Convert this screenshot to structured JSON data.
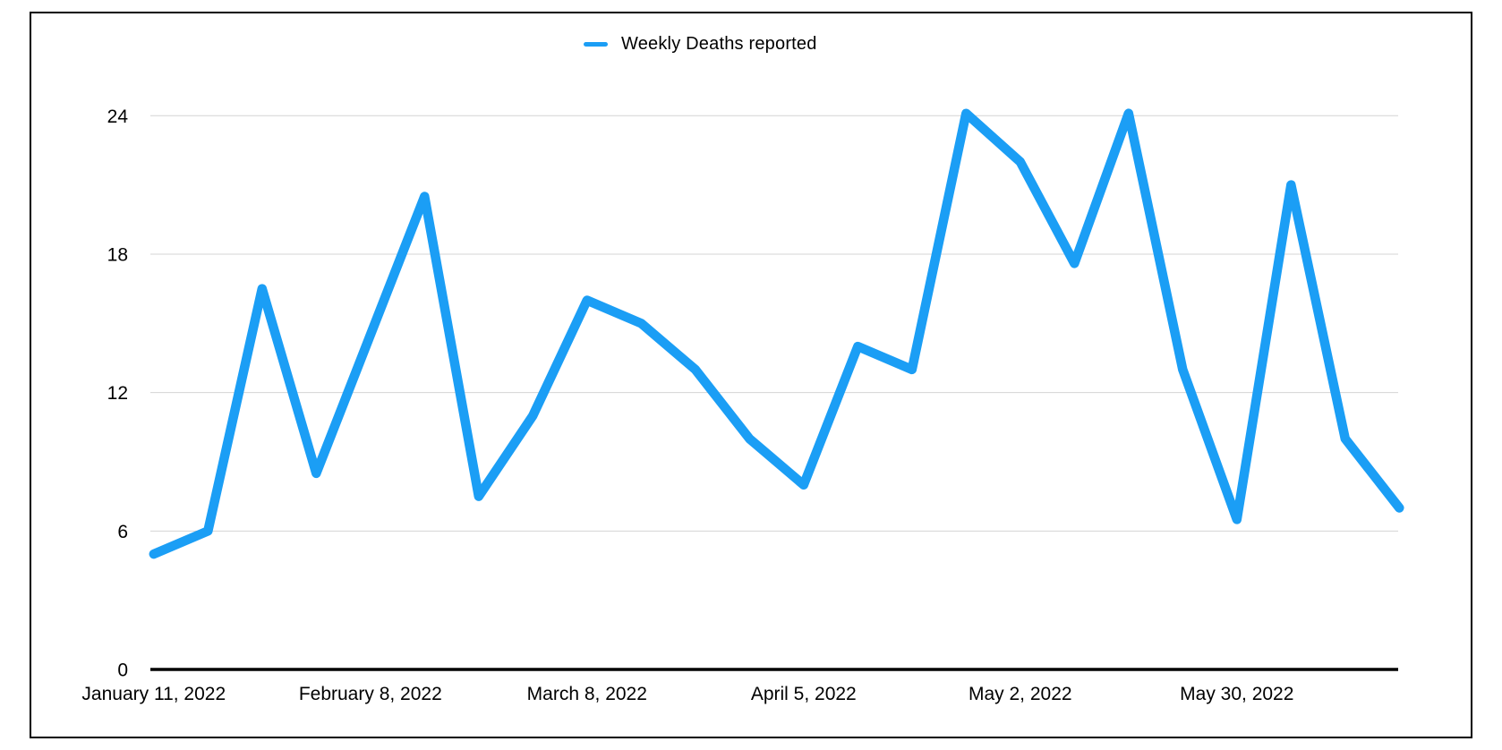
{
  "legend": {
    "label": "Weekly Deaths reported"
  },
  "chart_data": {
    "type": "line",
    "title": "",
    "xlabel": "",
    "ylabel": "",
    "series": [
      {
        "name": "Weekly Deaths reported",
        "values": [
          5,
          6,
          16.5,
          8.5,
          14.5,
          20.5,
          7.5,
          11,
          16,
          15,
          13,
          10,
          8,
          14,
          13,
          24.1,
          22,
          17.6,
          24.1,
          13,
          6.5,
          21,
          10,
          7
        ]
      }
    ],
    "x_tick_labels": [
      {
        "index": 0,
        "label": "January 11, 2022"
      },
      {
        "index": 4,
        "label": "February 8, 2022"
      },
      {
        "index": 8,
        "label": "March 8, 2022"
      },
      {
        "index": 12,
        "label": "April 5, 2022"
      },
      {
        "index": 16,
        "label": "May 2, 2022"
      },
      {
        "index": 20,
        "label": "May 30, 2022"
      }
    ],
    "y_ticks": [
      0,
      6,
      12,
      18,
      24
    ],
    "ylim": [
      0,
      24
    ],
    "grid": "horizontal",
    "legend_position": "top-center",
    "colors": {
      "series": "#1B9EF5",
      "gridline": "#D4D4D4",
      "axis": "#000000",
      "text": "#000000",
      "background": "#FFFFFF"
    }
  }
}
